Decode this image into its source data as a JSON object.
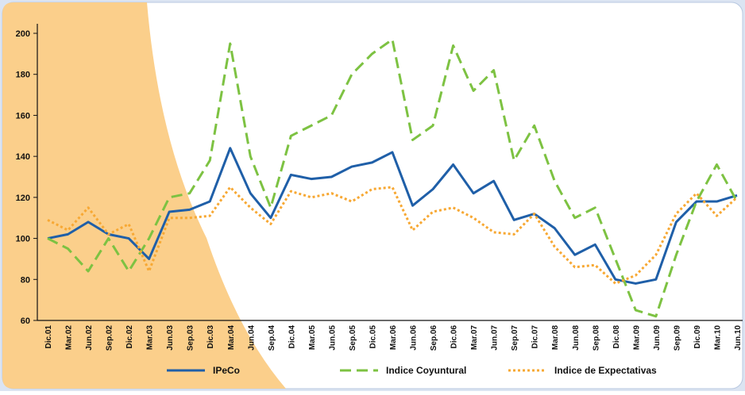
{
  "chart_data": {
    "type": "line",
    "categories": [
      "Dic.01",
      "Mar.02",
      "Jun.02",
      "Sep.02",
      "Dic.02",
      "Mar.03",
      "Jun.03",
      "Sep.03",
      "Dic.03",
      "Mar.04",
      "Jun.04",
      "Sep.04",
      "Dic.04",
      "Mar.05",
      "Jun.05",
      "Sep.05",
      "Dic.05",
      "Mar.06",
      "Jun.06",
      "Sep.06",
      "Dic.06",
      "Mar.07",
      "Jun.07",
      "Sep.07",
      "Dic.07",
      "Mar.08",
      "Jun.08",
      "Sep.08",
      "Dic.08",
      "Mar.09",
      "Jun.09",
      "Sep.09",
      "Dic.09",
      "Mar.10",
      "Jun.10"
    ],
    "series": [
      {
        "name": "IPeCo",
        "color": "#1f5fa8",
        "dash": "solid",
        "values": [
          100,
          102,
          108,
          102,
          100,
          90,
          113,
          114,
          118,
          144,
          122,
          110,
          131,
          129,
          130,
          135,
          137,
          142,
          116,
          124,
          136,
          122,
          128,
          109,
          112,
          105,
          92,
          97,
          80,
          78,
          80,
          108,
          118,
          118,
          121
        ]
      },
      {
        "name": "Indice Coyuntural",
        "color": "#7dc242",
        "dash": "dashed",
        "values": [
          100,
          95,
          84,
          100,
          84,
          100,
          120,
          122,
          138,
          195,
          140,
          115,
          150,
          155,
          160,
          180,
          190,
          197,
          148,
          155,
          194,
          172,
          182,
          138,
          155,
          128,
          110,
          115,
          90,
          65,
          62,
          92,
          118,
          136,
          118
        ]
      },
      {
        "name": "Indice de Expectativas",
        "color": "#f7a833",
        "dash": "dotted",
        "values": [
          109,
          104,
          115,
          102,
          107,
          84,
          110,
          110,
          111,
          125,
          115,
          107,
          123,
          120,
          122,
          118,
          124,
          125,
          104,
          113,
          115,
          110,
          103,
          102,
          112,
          96,
          86,
          87,
          78,
          82,
          92,
          112,
          122,
          111,
          120
        ]
      }
    ],
    "ylim": [
      60,
      200
    ],
    "yticks": [
      60,
      80,
      100,
      120,
      140,
      160,
      180,
      200
    ]
  }
}
